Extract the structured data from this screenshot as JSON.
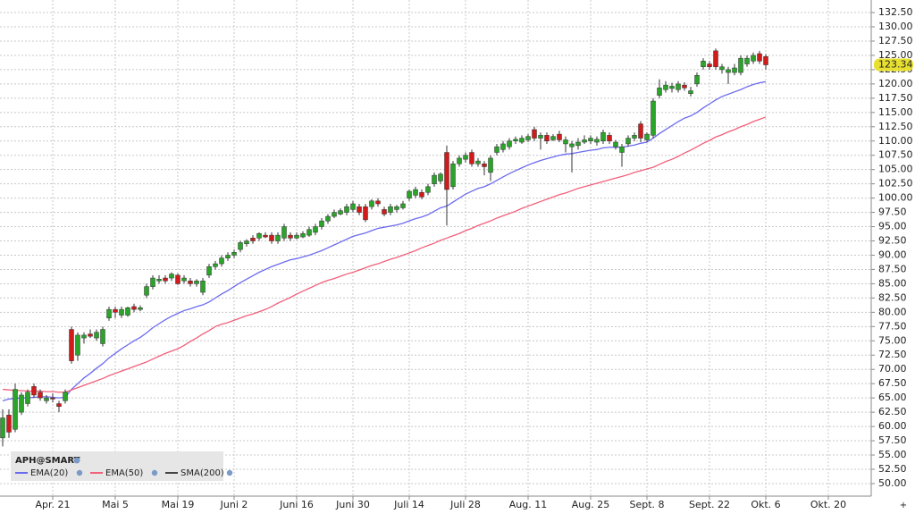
{
  "chart_data": {
    "type": "candlestick",
    "symbol": "APH@SMART",
    "categories": [
      null,
      null,
      null,
      null,
      null,
      null,
      null,
      null,
      "Apr. 21",
      null,
      null,
      null,
      null,
      null,
      null,
      null,
      null,
      null,
      "Mai 5",
      null,
      null,
      null,
      null,
      null,
      null,
      null,
      null,
      null,
      "Mai 19",
      null,
      null,
      null,
      null,
      null,
      null,
      null,
      null,
      "Juni 2",
      null,
      null,
      null,
      null,
      null,
      null,
      null,
      null,
      null,
      "Juni 16",
      null,
      null,
      null,
      null,
      null,
      null,
      null,
      null,
      "Juni 30",
      null,
      null,
      null,
      null,
      null,
      null,
      null,
      null,
      "Juli 14",
      null,
      null,
      null,
      null,
      null,
      null,
      null,
      null,
      "Juli 28",
      null,
      null,
      null,
      null,
      null,
      null,
      null,
      null,
      null,
      "Aug. 11",
      null,
      null,
      null,
      null,
      null,
      null,
      null,
      null,
      null,
      "Aug. 25",
      null,
      null,
      null,
      null,
      null,
      null,
      null,
      null,
      "Sept. 8",
      null,
      null,
      null,
      null,
      null,
      null,
      null,
      null,
      null,
      "Sept. 22",
      null,
      null,
      null,
      null,
      null,
      null,
      null,
      null,
      "Okt. 6",
      null,
      null,
      null,
      null,
      null,
      null,
      null,
      null,
      null,
      "Okt. 20",
      null,
      null,
      null,
      null,
      null,
      null
    ],
    "ohlc": {
      "up_color": "#2aa52a",
      "down_color": "#d11a1a",
      "open": [
        58,
        62,
        59.5,
        62.5,
        64,
        67,
        66,
        64.5,
        65,
        64,
        64.5,
        77,
        72.5,
        75.5,
        76.2,
        75.5,
        74.5,
        79,
        80.5,
        79.5,
        79.5,
        81,
        80.5,
        83,
        84.5,
        85.5,
        86,
        86,
        86.5,
        85.5,
        85.5,
        85,
        83.5,
        86.5,
        88,
        88.5,
        89.5,
        90,
        91,
        92,
        93,
        93,
        93.5,
        93.5,
        92.5,
        93,
        93.5,
        93,
        93.2,
        93.5,
        94,
        95,
        96,
        96.8,
        97.2,
        97.5,
        98,
        98.5,
        98.5,
        98.5,
        99.5,
        98,
        97.5,
        98,
        98.3,
        100,
        100.5,
        101,
        101,
        102.5,
        103,
        108,
        102,
        106,
        106.8,
        108,
        106,
        106,
        104.5,
        108,
        108.5,
        109,
        110,
        109.8,
        110.2,
        112,
        110.5,
        111,
        110.2,
        111.2,
        109.5,
        109,
        109.2,
        109.8,
        110,
        109.8,
        110,
        111,
        109,
        108,
        109.5,
        110.5,
        113,
        110.2,
        111,
        118,
        119,
        119.2,
        119,
        119.8,
        118.3,
        120,
        123,
        123.5,
        125.8,
        122.5,
        122,
        122,
        122,
        123.5,
        124,
        125.3,
        124.8,
        null,
        null,
        null,
        null,
        null,
        null,
        null,
        null,
        null,
        null,
        null,
        null,
        null,
        null,
        null,
        null
      ],
      "high": [
        63,
        63,
        67.5,
        66,
        66.5,
        67.5,
        66.5,
        65.5,
        65.8,
        64.5,
        66.5,
        77.5,
        76.5,
        76.5,
        77,
        77,
        77.5,
        81,
        81,
        81,
        81,
        81.5,
        81.2,
        85,
        86.5,
        86.5,
        86.5,
        87,
        86.8,
        86.5,
        86,
        85.8,
        86,
        88.5,
        89,
        90,
        90.5,
        91,
        92.5,
        92.8,
        93.5,
        94,
        94,
        94,
        94,
        95.5,
        94,
        94,
        94.2,
        95,
        95.5,
        96.5,
        97.2,
        98,
        98.2,
        99,
        99.5,
        99,
        99,
        99.8,
        100,
        98.5,
        99,
        98.8,
        99.5,
        101.5,
        102,
        101.5,
        102.5,
        104.5,
        104.5,
        109.2,
        106.5,
        107.5,
        108,
        108.5,
        107,
        106.5,
        107.5,
        109.5,
        110,
        110.5,
        110.8,
        111,
        111.2,
        112.5,
        111.5,
        111.5,
        111.2,
        111.8,
        110.8,
        110,
        110.5,
        111,
        111,
        110.8,
        112,
        111.5,
        110.2,
        109.5,
        111,
        111.5,
        113.5,
        111.5,
        117.5,
        120.8,
        120.5,
        120.2,
        120.5,
        120.3,
        119.5,
        122,
        124.5,
        124,
        126.2,
        123.5,
        123,
        123.5,
        125,
        125,
        125.5,
        125.8,
        125.2,
        null,
        null,
        null,
        null,
        null,
        null,
        null,
        null,
        null,
        null,
        null,
        null,
        null,
        null,
        null,
        null
      ],
      "low": [
        56.5,
        58,
        59,
        62,
        63.5,
        65,
        64.5,
        64,
        64.2,
        62.5,
        64,
        71,
        71.5,
        74.5,
        75.5,
        75,
        74,
        78.5,
        79,
        79,
        79.2,
        80,
        80.2,
        82.5,
        84,
        85,
        85,
        85.5,
        84.8,
        85,
        84.5,
        84.5,
        83,
        86,
        87.5,
        88,
        89,
        89.5,
        90.5,
        91.5,
        92,
        92.5,
        93,
        92,
        92,
        92.5,
        92.5,
        92.8,
        93,
        93.2,
        93.5,
        94.5,
        95.5,
        96.5,
        97,
        97,
        97.5,
        97,
        95.8,
        98,
        98.5,
        96.8,
        97,
        97.5,
        98,
        99.5,
        100,
        99.8,
        100.5,
        102,
        102.5,
        95.2,
        101.5,
        105.5,
        106.2,
        105.5,
        105.5,
        104,
        103,
        107.5,
        108,
        108.5,
        109.5,
        109.5,
        109.8,
        110,
        108.5,
        109.5,
        110,
        109.8,
        108,
        104.5,
        108.5,
        109.5,
        109.5,
        109.2,
        109.5,
        109.5,
        108.5,
        105.5,
        109,
        110,
        109.8,
        109.8,
        110.5,
        117.5,
        118.5,
        118.5,
        118.5,
        118.8,
        117.8,
        119.5,
        122.5,
        122.5,
        122.5,
        121.8,
        120,
        121.5,
        121.5,
        123,
        123.5,
        123.5,
        122.5,
        null,
        null,
        null,
        null,
        null,
        null,
        null,
        null,
        null,
        null,
        null,
        null,
        null,
        null,
        null,
        null
      ],
      "close": [
        61.5,
        59,
        66.5,
        65.5,
        66,
        65.5,
        65,
        65,
        64.8,
        63.5,
        66,
        71.5,
        76,
        76,
        75.8,
        76.5,
        77,
        80.5,
        80,
        80.5,
        80.8,
        80.5,
        80.8,
        84.5,
        86,
        85.8,
        85.5,
        86.7,
        85,
        86,
        85,
        85.5,
        85.5,
        88,
        88.5,
        89.5,
        90,
        90.5,
        92.2,
        92.5,
        92.5,
        93.8,
        93.2,
        92.5,
        93.5,
        95,
        93,
        93.5,
        93.8,
        94.5,
        95,
        96,
        96.8,
        97.5,
        97.8,
        98.5,
        99,
        97.5,
        96.2,
        99.5,
        99,
        97.2,
        98.5,
        98.5,
        99,
        101.2,
        101.5,
        100.2,
        102,
        104,
        104.2,
        101.5,
        106,
        107,
        107.5,
        106,
        106.5,
        105.5,
        107,
        109,
        109.5,
        110,
        110.3,
        110.5,
        110.8,
        110.5,
        111,
        110,
        110.8,
        110.2,
        110.2,
        109.5,
        109.8,
        110.2,
        110.5,
        110.3,
        111.5,
        110,
        109.8,
        109,
        110.5,
        111,
        110.5,
        111.2,
        117,
        119.3,
        119.8,
        119.6,
        120,
        119.3,
        118.8,
        121.5,
        124,
        123,
        123,
        123,
        122.5,
        122.8,
        124.5,
        124.5,
        125,
        124,
        123.34,
        null,
        null,
        null,
        null,
        null,
        null,
        null,
        null,
        null,
        null,
        null,
        null,
        null,
        null,
        null,
        null
      ]
    },
    "series": [
      {
        "name": "EMA(20)",
        "color": "#6b6bf0",
        "values": [
          64.5,
          64.8,
          64.9,
          65,
          65,
          65.1,
          65.2,
          65.2,
          65.1,
          65,
          65.1,
          66.5,
          67.5,
          68.5,
          69.3,
          70.2,
          71,
          72,
          72.8,
          73.6,
          74.3,
          75,
          75.6,
          76.4,
          77.3,
          78,
          78.7,
          79.3,
          79.8,
          80.3,
          80.6,
          81,
          81.3,
          81.8,
          82.5,
          83.2,
          83.8,
          84.5,
          85.2,
          85.8,
          86.4,
          87,
          87.5,
          88,
          88.4,
          88.8,
          89.2,
          89.4,
          89.7,
          90,
          90.4,
          90.8,
          91.3,
          91.8,
          92.3,
          92.8,
          93.3,
          93.6,
          93.9,
          94.3,
          94.7,
          94.9,
          95.1,
          95.3,
          95.6,
          96,
          96.4,
          96.7,
          97.1,
          97.7,
          98.3,
          98.6,
          99.3,
          100,
          100.7,
          101.2,
          101.7,
          102,
          102.5,
          103.1,
          103.7,
          104.3,
          104.8,
          105.3,
          105.8,
          106.2,
          106.6,
          106.9,
          107.2,
          107.5,
          107.7,
          107.8,
          108,
          108.2,
          108.4,
          108.5,
          108.8,
          108.9,
          108.9,
          108.9,
          109.1,
          109.3,
          109.6,
          109.8,
          110.5,
          111.3,
          112,
          112.7,
          113.4,
          114,
          114.4,
          115,
          115.8,
          116.5,
          117.2,
          117.8,
          118.2,
          118.6,
          119,
          119.5,
          119.9,
          120.2,
          120.4,
          null,
          null,
          null,
          null,
          null,
          null,
          null,
          null,
          null,
          null,
          null,
          null,
          null,
          null,
          null,
          null
        ]
      },
      {
        "name": "EMA(50)",
        "color": "#f2607a",
        "values": [
          66.5,
          66.4,
          66.3,
          66.3,
          66.2,
          66.2,
          66.2,
          66.1,
          66.1,
          66,
          66,
          66.4,
          66.8,
          67.2,
          67.6,
          68,
          68.4,
          68.9,
          69.3,
          69.7,
          70.1,
          70.5,
          70.9,
          71.3,
          71.8,
          72.3,
          72.8,
          73.2,
          73.6,
          74.2,
          74.9,
          75.5,
          76.2,
          76.8,
          77.5,
          77.9,
          78.2,
          78.6,
          79,
          79.4,
          79.7,
          80.1,
          80.5,
          81,
          81.6,
          82.1,
          82.6,
          83.2,
          83.7,
          84.2,
          84.7,
          85.2,
          85.6,
          85.9,
          86.3,
          86.7,
          87,
          87.4,
          87.8,
          88.2,
          88.5,
          88.9,
          89.3,
          89.6,
          90,
          90.4,
          90.8,
          91.3,
          91.7,
          92.1,
          92.6,
          93,
          93.4,
          93.8,
          94.3,
          94.7,
          95.2,
          95.6,
          96,
          96.5,
          96.9,
          97.3,
          97.7,
          98.2,
          98.6,
          99,
          99.4,
          99.8,
          100.2,
          100.6,
          100.9,
          101.3,
          101.7,
          102,
          102.3,
          102.6,
          102.9,
          103.2,
          103.5,
          103.8,
          104.1,
          104.5,
          104.8,
          105.1,
          105.4,
          105.9,
          106.4,
          106.8,
          107.3,
          107.9,
          108.4,
          109,
          109.6,
          110.1,
          110.7,
          111.1,
          111.6,
          112,
          112.5,
          112.9,
          113.4,
          113.8,
          114.2,
          null,
          null,
          null,
          null,
          null,
          null,
          null,
          null,
          null,
          null,
          null,
          null,
          null,
          null,
          null,
          null
        ]
      }
    ],
    "legend_only": [
      {
        "name": "SMA(200)",
        "color": "#444444"
      }
    ],
    "last_price": {
      "value": 123.34,
      "label": "123.34",
      "color": "#e8e030"
    },
    "ylim": [
      47.8,
      134.7
    ],
    "yticks": [
      {
        "value": 50,
        "label": "50.00"
      },
      {
        "value": 52.5,
        "label": "52.50"
      },
      {
        "value": 55,
        "label": "55.00"
      },
      {
        "value": 57.5,
        "label": "57.50"
      },
      {
        "value": 60,
        "label": "60.00"
      },
      {
        "value": 62.5,
        "label": "62.50"
      },
      {
        "value": 65,
        "label": "65.00"
      },
      {
        "value": 67.5,
        "label": "67.50"
      },
      {
        "value": 70,
        "label": "70.00"
      },
      {
        "value": 72.5,
        "label": "72.50"
      },
      {
        "value": 75,
        "label": "75.00"
      },
      {
        "value": 77.5,
        "label": "77.50"
      },
      {
        "value": 80,
        "label": "80.00"
      },
      {
        "value": 82.5,
        "label": "82.50"
      },
      {
        "value": 85,
        "label": "85.00"
      },
      {
        "value": 87.5,
        "label": "87.50"
      },
      {
        "value": 90,
        "label": "90.00"
      },
      {
        "value": 92.5,
        "label": "92.50"
      },
      {
        "value": 95,
        "label": "95.00"
      },
      {
        "value": 97.5,
        "label": "97.50"
      },
      {
        "value": 100,
        "label": "100.00"
      },
      {
        "value": 102.5,
        "label": "102.50"
      },
      {
        "value": 105,
        "label": "105.00"
      },
      {
        "value": 107.5,
        "label": "107.50"
      },
      {
        "value": 110,
        "label": "110.00"
      },
      {
        "value": 112.5,
        "label": "112.50"
      },
      {
        "value": 115,
        "label": "115.00"
      },
      {
        "value": 117.5,
        "label": "117.50"
      },
      {
        "value": 120,
        "label": "120.00"
      },
      {
        "value": 122.5,
        "label": "122.50"
      },
      {
        "value": 125,
        "label": "125.00"
      },
      {
        "value": 127.5,
        "label": "127.50"
      },
      {
        "value": 130,
        "label": "130.00"
      },
      {
        "value": 132.5,
        "label": "132.50"
      }
    ],
    "grid": true
  }
}
